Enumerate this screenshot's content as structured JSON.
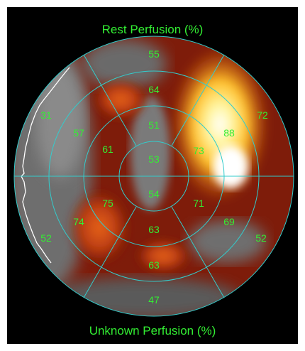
{
  "view": {
    "top_title": "Rest Perfusion (%)",
    "bottom_title": "Unknown Perfusion (%)"
  },
  "colors": {
    "background": "#000000",
    "ring_lines": "#33cccc",
    "label_text": "#33ee33"
  },
  "segments": {
    "s1": "55",
    "s2": "72",
    "s3": "52",
    "s4": "47",
    "s5": "52",
    "s6": "31",
    "s7": "64",
    "s8": "88",
    "s9": "69",
    "s10": "63",
    "s11": "74",
    "s12": "57",
    "s13": "51",
    "s14": "73",
    "s15": "71",
    "s16": "63",
    "s17": "75",
    "s18": "61",
    "s19": "53",
    "s20": "54"
  }
}
